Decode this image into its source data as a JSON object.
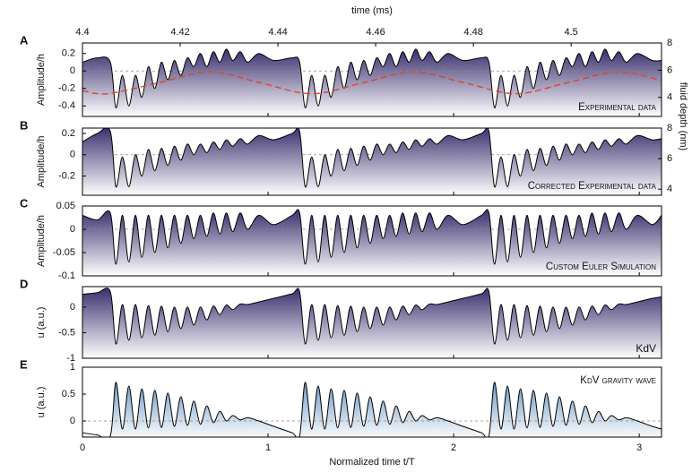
{
  "chart_data": [
    {
      "type": "area",
      "panel_label": "A",
      "ylabel": "Amplitude/h",
      "annotation": "Experimental data",
      "annotation_position": "bottom",
      "small_caps": true,
      "color": "#3b2f6e",
      "zero_line": true,
      "xlim": [
        0,
        3.12
      ],
      "ylim": [
        -0.52,
        0.32
      ],
      "yticks": [
        -0.4,
        -0.2,
        0,
        0.2
      ],
      "x2label": "time (ms)",
      "x2lim": [
        4.4,
        4.5185
      ],
      "x2ticks": [
        4.4,
        4.42,
        4.44,
        4.46,
        4.48,
        4.5
      ],
      "y2label": "fluid depth (nm)",
      "y2lim": [
        2.6,
        8
      ],
      "y2ticks": [
        4,
        6,
        8
      ],
      "x": [
        0,
        0.08,
        0.15,
        0.18,
        0.215,
        0.25,
        0.285,
        0.32,
        0.355,
        0.39,
        0.425,
        0.46,
        0.495,
        0.53,
        0.565,
        0.6,
        0.635,
        0.67,
        0.705,
        0.74,
        0.775,
        0.81,
        0.85,
        0.89,
        0.95,
        1.03,
        1.13,
        1.17,
        1.2,
        1.235,
        1.27,
        1.305,
        1.34,
        1.375,
        1.41,
        1.445,
        1.48,
        1.515,
        1.55,
        1.585,
        1.62,
        1.655,
        1.69,
        1.725,
        1.76,
        1.795,
        1.83,
        1.87,
        1.91,
        1.97,
        2.05,
        2.15,
        2.19,
        2.22,
        2.255,
        2.29,
        2.325,
        2.36,
        2.395,
        2.43,
        2.465,
        2.5,
        2.535,
        2.57,
        2.605,
        2.64,
        2.675,
        2.71,
        2.745,
        2.78,
        2.815,
        2.85,
        2.89,
        2.93,
        2.99,
        3.07,
        3.12
      ],
      "values": [
        0.1,
        0.15,
        0.1,
        -0.42,
        -0.05,
        -0.4,
        -0.05,
        -0.3,
        0.05,
        -0.2,
        0.1,
        -0.1,
        0.12,
        -0.05,
        0.15,
        0.05,
        0.2,
        0.05,
        0.22,
        0.1,
        0.25,
        0.12,
        0.22,
        0.1,
        0.2,
        0.12,
        0.15,
        0.1,
        -0.42,
        -0.05,
        -0.4,
        -0.05,
        -0.3,
        0.05,
        -0.2,
        0.1,
        -0.1,
        0.12,
        -0.05,
        0.15,
        0.05,
        0.2,
        0.05,
        0.22,
        0.1,
        0.25,
        0.12,
        0.22,
        0.1,
        0.2,
        0.12,
        0.15,
        0.1,
        -0.42,
        -0.05,
        -0.4,
        -0.05,
        -0.3,
        0.05,
        -0.2,
        0.1,
        -0.1,
        0.12,
        -0.05,
        0.15,
        0.05,
        0.2,
        0.05,
        0.22,
        0.1,
        0.25,
        0.12,
        0.22,
        0.1,
        0.2,
        0.12,
        0.12
      ],
      "overlay": {
        "axis": "y2",
        "color": "#d9472b",
        "dashed": true,
        "x": [
          0,
          0.135,
          0.41,
          0.685,
          0.96,
          1.235,
          1.51,
          1.785,
          2.06,
          2.335,
          2.61,
          2.885,
          3.12
        ],
        "values": [
          4.5,
          4.27,
          5.07,
          5.87,
          5.07,
          4.27,
          5.07,
          5.87,
          5.07,
          4.27,
          5.07,
          5.87,
          5.25
        ]
      }
    },
    {
      "type": "area",
      "panel_label": "B",
      "ylabel": "Amplitude/h",
      "annotation": "Corrected Experimental data",
      "annotation_position": "bottom",
      "small_caps": true,
      "color": "#3b2f6e",
      "zero_line": true,
      "xlim": [
        0,
        3.12
      ],
      "ylim": [
        -0.38,
        0.25
      ],
      "yticks": [
        -0.2,
        0,
        0.2
      ],
      "y2lim": [
        3.6,
        8
      ],
      "y2ticks": [
        4,
        6,
        8
      ],
      "x": [
        0,
        0.08,
        0.15,
        0.18,
        0.215,
        0.25,
        0.285,
        0.32,
        0.355,
        0.39,
        0.425,
        0.46,
        0.495,
        0.53,
        0.565,
        0.6,
        0.635,
        0.67,
        0.705,
        0.74,
        0.775,
        0.81,
        0.85,
        0.89,
        0.95,
        1.03,
        1.13,
        1.17,
        1.2,
        1.235,
        1.27,
        1.305,
        1.34,
        1.375,
        1.41,
        1.445,
        1.48,
        1.515,
        1.55,
        1.585,
        1.62,
        1.655,
        1.69,
        1.725,
        1.76,
        1.795,
        1.83,
        1.87,
        1.91,
        1.97,
        2.05,
        2.15,
        2.19,
        2.22,
        2.255,
        2.29,
        2.325,
        2.36,
        2.395,
        2.43,
        2.465,
        2.5,
        2.535,
        2.57,
        2.605,
        2.64,
        2.675,
        2.71,
        2.745,
        2.78,
        2.815,
        2.85,
        2.89,
        2.93,
        2.99,
        3.07,
        3.12
      ],
      "values": [
        0.12,
        0.2,
        0.22,
        -0.3,
        -0.02,
        -0.3,
        0,
        -0.2,
        0.05,
        -0.15,
        0.06,
        -0.1,
        0.08,
        -0.05,
        0.1,
        0,
        0.1,
        0.02,
        0.12,
        0.05,
        0.14,
        0.08,
        0.15,
        0.1,
        0.18,
        0.14,
        0.2,
        0.22,
        -0.3,
        -0.02,
        -0.3,
        0,
        -0.2,
        0.05,
        -0.15,
        0.06,
        -0.1,
        0.08,
        -0.05,
        0.1,
        0,
        0.1,
        0.02,
        0.12,
        0.05,
        0.14,
        0.08,
        0.15,
        0.1,
        0.18,
        0.14,
        0.2,
        0.22,
        -0.3,
        -0.02,
        -0.3,
        0,
        -0.2,
        0.05,
        -0.15,
        0.06,
        -0.1,
        0.08,
        -0.05,
        0.1,
        0,
        0.1,
        0.02,
        0.12,
        0.05,
        0.14,
        0.08,
        0.15,
        0.1,
        0.18,
        0.14,
        0.15
      ]
    },
    {
      "type": "area",
      "panel_label": "C",
      "ylabel": "Amplitude/h",
      "annotation": "Custom Euler Simulation",
      "annotation_position": "bottom",
      "small_caps": true,
      "color": "#3b2f6e",
      "zero_line": true,
      "xlim": [
        0,
        3.12
      ],
      "ylim": [
        -0.1,
        0.05
      ],
      "yticks": [
        -0.1,
        -0.05,
        0,
        0.05
      ],
      "x": [
        0,
        0.08,
        0.15,
        0.18,
        0.215,
        0.25,
        0.285,
        0.32,
        0.355,
        0.39,
        0.425,
        0.46,
        0.495,
        0.53,
        0.565,
        0.6,
        0.635,
        0.67,
        0.705,
        0.74,
        0.775,
        0.81,
        0.85,
        0.89,
        0.95,
        1.03,
        1.13,
        1.17,
        1.2,
        1.235,
        1.27,
        1.305,
        1.34,
        1.375,
        1.41,
        1.445,
        1.48,
        1.515,
        1.55,
        1.585,
        1.62,
        1.655,
        1.69,
        1.725,
        1.76,
        1.795,
        1.83,
        1.87,
        1.91,
        1.97,
        2.05,
        2.15,
        2.19,
        2.22,
        2.255,
        2.29,
        2.325,
        2.36,
        2.395,
        2.43,
        2.465,
        2.5,
        2.535,
        2.57,
        2.605,
        2.64,
        2.675,
        2.71,
        2.745,
        2.78,
        2.815,
        2.85,
        2.89,
        2.93,
        2.99,
        3.07,
        3.12
      ],
      "values": [
        0.03,
        0.02,
        0.035,
        -0.075,
        0.03,
        -0.07,
        0.03,
        -0.06,
        0.03,
        -0.05,
        0.03,
        -0.04,
        0.03,
        -0.03,
        0.03,
        -0.02,
        0.03,
        -0.015,
        0.035,
        -0.01,
        0.035,
        -0.005,
        0.035,
        0,
        0.03,
        0.01,
        0.03,
        0.035,
        -0.075,
        0.03,
        -0.07,
        0.03,
        -0.06,
        0.03,
        -0.05,
        0.03,
        -0.04,
        0.03,
        -0.03,
        0.03,
        -0.02,
        0.03,
        -0.015,
        0.035,
        -0.01,
        0.035,
        -0.005,
        0.035,
        0,
        0.03,
        0.01,
        0.03,
        0.035,
        -0.075,
        0.03,
        -0.07,
        0.03,
        -0.06,
        0.03,
        -0.05,
        0.03,
        -0.04,
        0.03,
        -0.03,
        0.03,
        -0.02,
        0.03,
        -0.015,
        0.035,
        -0.01,
        0.035,
        -0.005,
        0.035,
        0,
        0.03,
        0.01,
        0.03
      ]
    },
    {
      "type": "area",
      "panel_label": "D",
      "ylabel": "u (a.u.)",
      "annotation": "KdV",
      "annotation_position": "bottom",
      "small_caps": false,
      "color": "#3b2f6e",
      "zero_line": false,
      "xlim": [
        0,
        3.12
      ],
      "ylim": [
        -1,
        0.4
      ],
      "yticks": [
        -1,
        -0.5,
        0
      ],
      "x": [
        0,
        0.08,
        0.15,
        0.18,
        0.215,
        0.25,
        0.285,
        0.32,
        0.355,
        0.39,
        0.425,
        0.46,
        0.495,
        0.53,
        0.565,
        0.6,
        0.635,
        0.67,
        0.705,
        0.74,
        0.775,
        0.81,
        0.85,
        0.89,
        0.95,
        1.03,
        1.13,
        1.17,
        1.2,
        1.235,
        1.27,
        1.305,
        1.34,
        1.375,
        1.41,
        1.445,
        1.48,
        1.515,
        1.55,
        1.585,
        1.62,
        1.655,
        1.69,
        1.725,
        1.76,
        1.795,
        1.83,
        1.87,
        1.91,
        1.97,
        2.05,
        2.15,
        2.19,
        2.22,
        2.255,
        2.29,
        2.325,
        2.36,
        2.395,
        2.43,
        2.465,
        2.5,
        2.535,
        2.57,
        2.605,
        2.64,
        2.675,
        2.71,
        2.745,
        2.78,
        2.815,
        2.85,
        2.89,
        2.93,
        2.99,
        3.07,
        3.12
      ],
      "values": [
        0.25,
        0.28,
        0.3,
        -0.72,
        0.05,
        -0.65,
        0.05,
        -0.6,
        0.03,
        -0.55,
        0.02,
        -0.48,
        0,
        -0.42,
        0,
        -0.35,
        0,
        -0.25,
        0.02,
        -0.15,
        0.04,
        -0.05,
        0.06,
        0.05,
        0.1,
        0.17,
        0.26,
        0.3,
        -0.72,
        0.05,
        -0.65,
        0.05,
        -0.6,
        0.03,
        -0.55,
        0.02,
        -0.48,
        0,
        -0.42,
        0,
        -0.35,
        0,
        -0.25,
        0.02,
        -0.15,
        0.04,
        -0.05,
        0.06,
        0.05,
        0.1,
        0.17,
        0.26,
        0.3,
        -0.72,
        0.05,
        -0.65,
        0.05,
        -0.6,
        0.03,
        -0.55,
        0.02,
        -0.48,
        0,
        -0.42,
        0,
        -0.35,
        0,
        -0.25,
        0.02,
        -0.15,
        0.04,
        -0.05,
        0.06,
        0.05,
        0.1,
        0.17,
        0.2
      ]
    },
    {
      "type": "area",
      "panel_label": "E",
      "ylabel": "u (a.u.)",
      "annotation": "KdV gravity wave",
      "annotation_position": "top",
      "small_caps": true,
      "color": "#6e9ac4",
      "zero_line": true,
      "xlabel": "Normalized time t/T",
      "xlim": [
        0,
        3.12
      ],
      "xticks": [
        0,
        1,
        2,
        3
      ],
      "ylim": [
        -0.3,
        1
      ],
      "yticks": [
        0,
        0.5,
        1
      ],
      "x": [
        0,
        0.08,
        0.15,
        0.18,
        0.215,
        0.25,
        0.285,
        0.32,
        0.355,
        0.39,
        0.425,
        0.46,
        0.495,
        0.53,
        0.565,
        0.6,
        0.635,
        0.67,
        0.705,
        0.74,
        0.775,
        0.81,
        0.85,
        0.89,
        0.95,
        1.03,
        1.13,
        1.17,
        1.2,
        1.235,
        1.27,
        1.305,
        1.34,
        1.375,
        1.41,
        1.445,
        1.48,
        1.515,
        1.55,
        1.585,
        1.62,
        1.655,
        1.69,
        1.725,
        1.76,
        1.795,
        1.83,
        1.87,
        1.91,
        1.97,
        2.05,
        2.15,
        2.19,
        2.22,
        2.255,
        2.29,
        2.325,
        2.36,
        2.395,
        2.43,
        2.465,
        2.5,
        2.535,
        2.57,
        2.605,
        2.64,
        2.675,
        2.71,
        2.745,
        2.78,
        2.815,
        2.85,
        2.89,
        2.93,
        2.99,
        3.07,
        3.12
      ],
      "values": [
        -0.22,
        -0.26,
        -0.28,
        0.72,
        -0.15,
        0.65,
        -0.15,
        0.6,
        -0.13,
        0.57,
        -0.12,
        0.52,
        -0.1,
        0.45,
        -0.08,
        0.37,
        -0.06,
        0.28,
        -0.03,
        0.18,
        0,
        0.1,
        0.02,
        0.06,
        0,
        -0.1,
        -0.22,
        -0.28,
        0.72,
        -0.15,
        0.65,
        -0.15,
        0.6,
        -0.13,
        0.57,
        -0.12,
        0.52,
        -0.1,
        0.45,
        -0.08,
        0.37,
        -0.06,
        0.28,
        -0.03,
        0.18,
        0,
        0.1,
        0.02,
        0.06,
        0,
        -0.1,
        -0.22,
        -0.28,
        0.72,
        -0.15,
        0.65,
        -0.15,
        0.6,
        -0.13,
        0.57,
        -0.12,
        0.52,
        -0.1,
        0.45,
        -0.08,
        0.37,
        -0.06,
        0.28,
        -0.03,
        0.18,
        0,
        0.1,
        0.02,
        0.06,
        0,
        -0.1,
        -0.15
      ]
    }
  ]
}
